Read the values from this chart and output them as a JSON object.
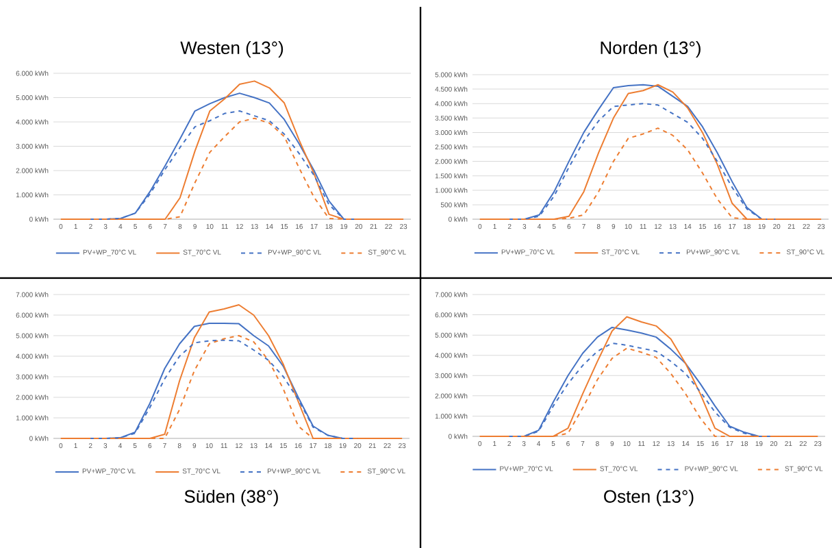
{
  "chart_data": [
    {
      "type": "line",
      "title": "Westen (13°)",
      "categories": [
        "0",
        "1",
        "2",
        "3",
        "4",
        "5",
        "6",
        "7",
        "8",
        "9",
        "10",
        "11",
        "12",
        "13",
        "14",
        "15",
        "16",
        "17",
        "18",
        "19",
        "20",
        "21",
        "22",
        "23"
      ],
      "ylim": [
        0,
        6000
      ],
      "yticks": [
        {
          "value": 0,
          "label": "0 kWh"
        },
        {
          "value": 1000,
          "label": "1.000 kWh"
        },
        {
          "value": 2000,
          "label": "2.000 kWh"
        },
        {
          "value": 3000,
          "label": "3.000 kWh"
        },
        {
          "value": 4000,
          "label": "4.000 kWh"
        },
        {
          "value": 5000,
          "label": "5.000 kWh"
        },
        {
          "value": 6000,
          "label": "6.000 kWh"
        }
      ],
      "grid": "y",
      "legend": "bottom",
      "marker": "none",
      "series": [
        {
          "name": "PV+WP_70°C VL",
          "color": "#4472c4",
          "line_style": "solid",
          "values": [
            null,
            null,
            0,
            0,
            30,
            250,
            1150,
            2200,
            3300,
            4450,
            4750,
            5000,
            5180,
            5000,
            4780,
            4100,
            3100,
            2000,
            750,
            0,
            0,
            null,
            null,
            null
          ]
        },
        {
          "name": "ST_70°C VL",
          "color": "#ed7d31",
          "line_style": "solid",
          "values": [
            0,
            0,
            0,
            0,
            0,
            0,
            0,
            0,
            880,
            2800,
            4450,
            4950,
            5550,
            5680,
            5400,
            4780,
            3250,
            1870,
            200,
            0,
            0,
            0,
            0,
            0
          ]
        },
        {
          "name": "PV+WP_90°C VL",
          "color": "#4472c4",
          "line_style": "dashed",
          "values": [
            null,
            null,
            0,
            0,
            30,
            250,
            1050,
            2050,
            2950,
            3800,
            4050,
            4350,
            4450,
            4250,
            4050,
            3500,
            2700,
            1800,
            600,
            0,
            0,
            null,
            null,
            null
          ]
        },
        {
          "name": "ST_90°C VL",
          "color": "#ed7d31",
          "line_style": "dashed",
          "values": [
            0,
            0,
            0,
            0,
            0,
            0,
            0,
            0,
            100,
            1500,
            2750,
            3400,
            4000,
            4150,
            3950,
            3400,
            2100,
            900,
            30,
            0,
            0,
            0,
            0,
            0
          ]
        }
      ]
    },
    {
      "type": "line",
      "title": "Norden (13°)",
      "categories": [
        "0",
        "1",
        "2",
        "3",
        "4",
        "5",
        "6",
        "7",
        "8",
        "9",
        "10",
        "11",
        "12",
        "13",
        "14",
        "15",
        "16",
        "17",
        "18",
        "19",
        "20",
        "21",
        "22",
        "23"
      ],
      "ylim": [
        0,
        5000
      ],
      "yticks": [
        {
          "value": 0,
          "label": "0 kWh"
        },
        {
          "value": 500,
          "label": "500 kWh"
        },
        {
          "value": 1000,
          "label": "1.000 kWh"
        },
        {
          "value": 1500,
          "label": "1.500 kWh"
        },
        {
          "value": 2000,
          "label": "2.000 kWh"
        },
        {
          "value": 2500,
          "label": "2.500 kWh"
        },
        {
          "value": 3000,
          "label": "3.000 kWh"
        },
        {
          "value": 3500,
          "label": "3.500 kWh"
        },
        {
          "value": 4000,
          "label": "4.000 kWh"
        },
        {
          "value": 4500,
          "label": "4.500 kWh"
        },
        {
          "value": 5000,
          "label": "5.000 kWh"
        }
      ],
      "grid": "y",
      "legend": "bottom",
      "marker": "none",
      "series": [
        {
          "name": "PV+WP_70°C VL",
          "color": "#4472c4",
          "line_style": "solid",
          "values": [
            null,
            null,
            0,
            0,
            150,
            950,
            2000,
            3000,
            3800,
            4550,
            4620,
            4650,
            4600,
            4250,
            3900,
            3200,
            2300,
            1300,
            400,
            0,
            0,
            null,
            null,
            null
          ]
        },
        {
          "name": "ST_70°C VL",
          "color": "#ed7d31",
          "line_style": "solid",
          "values": [
            0,
            0,
            0,
            0,
            0,
            0,
            100,
            950,
            2300,
            3500,
            4350,
            4450,
            4650,
            4400,
            3850,
            3000,
            1900,
            550,
            0,
            0,
            0,
            0,
            0,
            0
          ]
        },
        {
          "name": "PV+WP_90°C VL",
          "color": "#4472c4",
          "line_style": "dashed",
          "values": [
            null,
            null,
            0,
            0,
            100,
            800,
            1800,
            2700,
            3400,
            3900,
            3950,
            4000,
            3950,
            3650,
            3350,
            2800,
            2000,
            1100,
            350,
            0,
            0,
            null,
            null,
            null
          ]
        },
        {
          "name": "ST_90°C VL",
          "color": "#ed7d31",
          "line_style": "dashed",
          "values": [
            0,
            0,
            0,
            0,
            0,
            0,
            30,
            150,
            950,
            2000,
            2800,
            2950,
            3150,
            2900,
            2400,
            1600,
            700,
            50,
            0,
            0,
            0,
            0,
            0,
            0
          ]
        }
      ]
    },
    {
      "type": "line",
      "title": "Süden (38°)",
      "categories": [
        "0",
        "1",
        "2",
        "3",
        "4",
        "5",
        "6",
        "7",
        "8",
        "9",
        "10",
        "11",
        "12",
        "13",
        "14",
        "15",
        "16",
        "17",
        "18",
        "19",
        "20",
        "21",
        "22",
        "23"
      ],
      "ylim": [
        0,
        7000
      ],
      "yticks": [
        {
          "value": 0,
          "label": "0 kWh"
        },
        {
          "value": 1000,
          "label": "1.000 kWh"
        },
        {
          "value": 2000,
          "label": "2.000 kWh"
        },
        {
          "value": 3000,
          "label": "3.000 kWh"
        },
        {
          "value": 4000,
          "label": "4.000 kWh"
        },
        {
          "value": 5000,
          "label": "5.000 kWh"
        },
        {
          "value": 6000,
          "label": "6.000 kWh"
        },
        {
          "value": 7000,
          "label": "7.000 kWh"
        }
      ],
      "grid": "y",
      "legend": "bottom",
      "marker": "none",
      "series": [
        {
          "name": "PV+WP_70°C VL",
          "color": "#4472c4",
          "line_style": "solid",
          "values": [
            null,
            null,
            0,
            0,
            30,
            300,
            1700,
            3400,
            4600,
            5450,
            5600,
            5600,
            5580,
            5000,
            4500,
            3500,
            2000,
            600,
            150,
            0,
            0,
            null,
            null,
            null
          ]
        },
        {
          "name": "ST_70°C VL",
          "color": "#ed7d31",
          "line_style": "solid",
          "values": [
            0,
            0,
            0,
            0,
            0,
            0,
            0,
            200,
            2800,
            4900,
            6150,
            6300,
            6500,
            6000,
            5000,
            3600,
            1800,
            0,
            0,
            0,
            0,
            0,
            0,
            0
          ]
        },
        {
          "name": "PV+WP_90°C VL",
          "color": "#4472c4",
          "line_style": "dashed",
          "values": [
            null,
            null,
            0,
            0,
            30,
            250,
            1500,
            2900,
            4000,
            4650,
            4750,
            4780,
            4750,
            4300,
            3800,
            3000,
            1900,
            550,
            150,
            0,
            0,
            null,
            null,
            null
          ]
        },
        {
          "name": "ST_90°C VL",
          "color": "#ed7d31",
          "line_style": "dashed",
          "values": [
            0,
            0,
            0,
            0,
            0,
            0,
            0,
            0,
            1400,
            3300,
            4600,
            4850,
            5000,
            4700,
            3800,
            2400,
            600,
            0,
            0,
            0,
            0,
            0,
            0,
            0
          ]
        }
      ]
    },
    {
      "type": "line",
      "title": "Osten (13°)",
      "categories": [
        "0",
        "1",
        "2",
        "3",
        "4",
        "5",
        "6",
        "7",
        "8",
        "9",
        "10",
        "11",
        "12",
        "13",
        "14",
        "15",
        "16",
        "17",
        "18",
        "19",
        "20",
        "21",
        "22",
        "23"
      ],
      "ylim": [
        0,
        7000
      ],
      "yticks": [
        {
          "value": 0,
          "label": "0 kWh"
        },
        {
          "value": 1000,
          "label": "1.000 kWh"
        },
        {
          "value": 2000,
          "label": "2.000 kWh"
        },
        {
          "value": 3000,
          "label": "3.000 kWh"
        },
        {
          "value": 4000,
          "label": "4.000 kWh"
        },
        {
          "value": 5000,
          "label": "5.000 kWh"
        },
        {
          "value": 6000,
          "label": "6.000 kWh"
        },
        {
          "value": 7000,
          "label": "7.000 kWh"
        }
      ],
      "grid": "y",
      "legend": "bottom",
      "marker": "none",
      "series": [
        {
          "name": "PV+WP_70°C VL",
          "color": "#4472c4",
          "line_style": "solid",
          "values": [
            null,
            null,
            0,
            0,
            300,
            1700,
            3000,
            4100,
            4900,
            5380,
            5250,
            5100,
            4900,
            4300,
            3600,
            2600,
            1500,
            500,
            200,
            0,
            0,
            null,
            null,
            null
          ]
        },
        {
          "name": "ST_70°C VL",
          "color": "#ed7d31",
          "line_style": "solid",
          "values": [
            0,
            0,
            0,
            0,
            0,
            0,
            400,
            2100,
            3700,
            5200,
            5900,
            5650,
            5450,
            4800,
            3600,
            2100,
            400,
            0,
            0,
            0,
            0,
            0,
            0,
            0
          ]
        },
        {
          "name": "PV+WP_90°C VL",
          "color": "#4472c4",
          "line_style": "dashed",
          "values": [
            null,
            null,
            0,
            0,
            250,
            1500,
            2600,
            3500,
            4200,
            4600,
            4500,
            4350,
            4200,
            3700,
            3100,
            2200,
            1200,
            450,
            150,
            0,
            0,
            null,
            null,
            null
          ]
        },
        {
          "name": "ST_90°C VL",
          "color": "#ed7d31",
          "line_style": "dashed",
          "values": [
            0,
            0,
            0,
            0,
            0,
            0,
            150,
            1400,
            2800,
            3850,
            4350,
            4150,
            3900,
            3100,
            2100,
            900,
            0,
            0,
            0,
            0,
            0,
            0,
            0,
            0
          ]
        }
      ]
    }
  ]
}
